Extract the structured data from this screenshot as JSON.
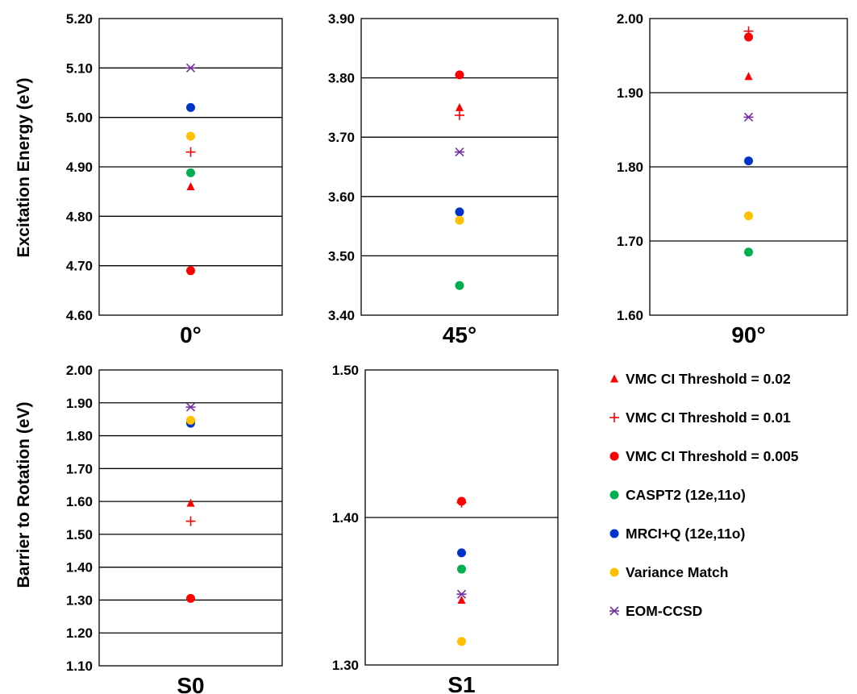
{
  "y_labels": {
    "top": "Excitation Energy (eV)",
    "bottom": "Barrier to Rotation (eV)"
  },
  "series": [
    {
      "key": "vmc002",
      "name": "VMC CI Threshold = 0.02",
      "marker": "triangle",
      "color": "#ff0000"
    },
    {
      "key": "vmc001",
      "name": "VMC CI Threshold = 0.01",
      "marker": "plus",
      "color": "#ff0000"
    },
    {
      "key": "vmc0005",
      "name": "VMC CI Threshold = 0.005",
      "marker": "circle",
      "color": "#ff0000"
    },
    {
      "key": "caspt2",
      "name": "CASPT2 (12e,11o)",
      "marker": "circle",
      "color": "#00b050"
    },
    {
      "key": "mrci",
      "name": "MRCI+Q (12e,11o)",
      "marker": "circle",
      "color": "#0033cc"
    },
    {
      "key": "variance",
      "name": "Variance Match",
      "marker": "circle",
      "color": "#ffc000"
    },
    {
      "key": "eom",
      "name": "EOM-CCSD",
      "marker": "star",
      "color": "#7030a0"
    }
  ],
  "chart_data": [
    {
      "type": "scatter",
      "xlabel": "0°",
      "ylim": [
        4.6,
        5.2
      ],
      "ticks": [
        "4.60",
        "4.70",
        "4.80",
        "4.90",
        "5.00",
        "5.10",
        "5.20"
      ],
      "values": {
        "vmc002": 4.86,
        "vmc001": 4.93,
        "vmc0005": 4.69,
        "caspt2": 4.888,
        "mrci": 5.02,
        "variance": 4.962,
        "eom": 5.1
      },
      "grid": true
    },
    {
      "type": "scatter",
      "xlabel": "45°",
      "ylim": [
        3.4,
        3.9
      ],
      "ticks": [
        "3.40",
        "3.50",
        "3.60",
        "3.70",
        "3.80",
        "3.90"
      ],
      "values": {
        "vmc002": 3.75,
        "vmc001": 3.737,
        "vmc0005": 3.805,
        "caspt2": 3.45,
        "mrci": 3.574,
        "variance": 3.56,
        "eom": 3.675
      },
      "grid": true
    },
    {
      "type": "scatter",
      "xlabel": "90°",
      "ylim": [
        1.6,
        2.0
      ],
      "ticks": [
        "1.60",
        "1.70",
        "1.80",
        "1.90",
        "2.00"
      ],
      "values": {
        "vmc002": 1.922,
        "vmc001": 1.983,
        "vmc0005": 1.975,
        "caspt2": 1.685,
        "mrci": 1.808,
        "variance": 1.734,
        "eom": 1.867
      },
      "grid": true
    },
    {
      "type": "scatter",
      "xlabel": "S0",
      "ylim": [
        1.1,
        2.0
      ],
      "ticks": [
        "1.10",
        "1.20",
        "1.30",
        "1.40",
        "1.50",
        "1.60",
        "1.70",
        "1.80",
        "1.90",
        "2.00"
      ],
      "values": {
        "vmc002": 1.595,
        "vmc001": 1.54,
        "vmc0005": 1.305,
        "caspt2": 1.845,
        "mrci": 1.838,
        "variance": 1.847,
        "eom": 1.887
      },
      "grid": true
    },
    {
      "type": "scatter",
      "xlabel": "S1",
      "ylim": [
        1.3,
        1.5
      ],
      "ticks": [
        "1.30",
        "1.40",
        "1.50"
      ],
      "values": {
        "vmc002": 1.344,
        "vmc001": 1.41,
        "vmc0005": 1.411,
        "caspt2": 1.365,
        "mrci": 1.376,
        "variance": 1.316,
        "eom": 1.348
      },
      "grid": true
    }
  ]
}
